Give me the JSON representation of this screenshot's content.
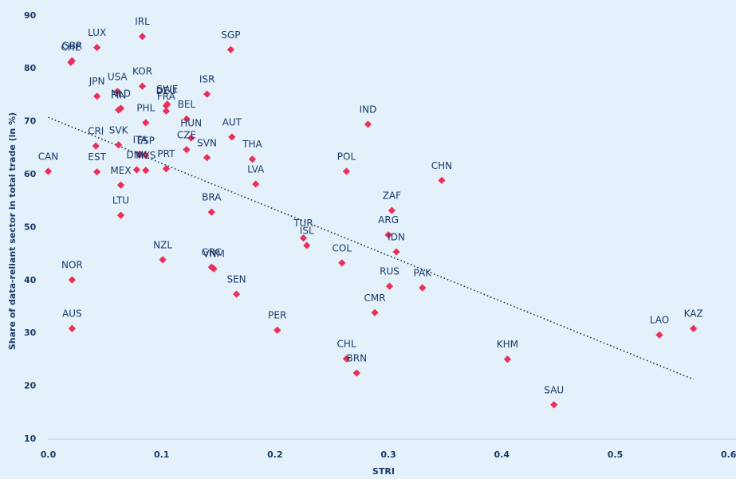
{
  "chart_data": {
    "type": "scatter",
    "x_label": "STRI",
    "y_label": "Share of data-reliant sector in total trade (in %)",
    "color": "#e8305a",
    "labels": [
      "CHE",
      "GBR",
      "LUX",
      "IRL",
      "SGP",
      "JPN",
      "USA",
      "KOR",
      "DEU",
      "SWE",
      "FRA",
      "ISR",
      "BEL",
      "FIN",
      "NLD",
      "PHL",
      "HUN",
      "AUT",
      "CRI",
      "SVK",
      "THA",
      "CZE",
      "SVN",
      "ITA",
      "ESP",
      "PRT",
      "MYS",
      "DNK",
      "CAN",
      "EST",
      "MEX",
      "LVA",
      "LTU",
      "BRA",
      "POL",
      "IND",
      "CHN",
      "ZAF",
      "ARG",
      "TUR",
      "ISL",
      "IDN",
      "COL",
      "NZL",
      "GRC",
      "VNM",
      "NOR",
      "RUS",
      "PAK",
      "SEN",
      "CMR",
      "AUS",
      "PER",
      "CHL",
      "BRN",
      "KHM",
      "SAU",
      "LAO",
      "KAZ"
    ],
    "x": [
      0.02,
      0.021,
      0.043,
      0.083,
      0.161,
      0.043,
      0.061,
      0.083,
      0.104,
      0.105,
      0.104,
      0.14,
      0.122,
      0.062,
      0.064,
      0.086,
      0.126,
      0.162,
      0.042,
      0.062,
      0.18,
      0.122,
      0.14,
      0.081,
      0.086,
      0.104,
      0.086,
      0.078,
      0.0,
      0.043,
      0.064,
      0.183,
      0.064,
      0.144,
      0.263,
      0.282,
      0.347,
      0.303,
      0.3,
      0.225,
      0.228,
      0.307,
      0.259,
      0.101,
      0.144,
      0.146,
      0.021,
      0.301,
      0.33,
      0.166,
      0.288,
      0.021,
      0.202,
      0.263,
      0.272,
      0.405,
      0.446,
      0.539,
      0.569
    ],
    "values": [
      81.2,
      81.5,
      84.0,
      86.1,
      83.6,
      74.8,
      75.7,
      76.7,
      73.0,
      73.3,
      72.0,
      75.2,
      70.5,
      72.2,
      72.5,
      69.8,
      66.9,
      67.1,
      65.4,
      65.6,
      62.9,
      64.7,
      63.2,
      63.8,
      63.6,
      61.1,
      60.8,
      60.9,
      60.6,
      60.5,
      58.0,
      58.2,
      52.3,
      52.9,
      60.6,
      69.5,
      58.9,
      53.2,
      48.6,
      48.0,
      46.6,
      45.4,
      43.3,
      43.9,
      42.5,
      42.2,
      40.1,
      38.9,
      38.6,
      37.4,
      33.9,
      30.9,
      30.6,
      25.2,
      22.5,
      25.1,
      16.5,
      29.7,
      30.9
    ],
    "trendline": {
      "x": [
        0,
        0.569
      ],
      "values": [
        70.8,
        21.3
      ],
      "color": "#1a2a4a"
    },
    "xlim": [
      0,
      0.6
    ],
    "ylim": [
      10,
      90
    ],
    "xticks": [
      {
        "value": 0,
        "label": "0.0"
      },
      0.1,
      0.2,
      0.3,
      0.4,
      0.5,
      0.6
    ],
    "yticks": [
      10,
      20,
      30,
      40,
      50,
      60,
      70,
      80,
      90
    ]
  }
}
